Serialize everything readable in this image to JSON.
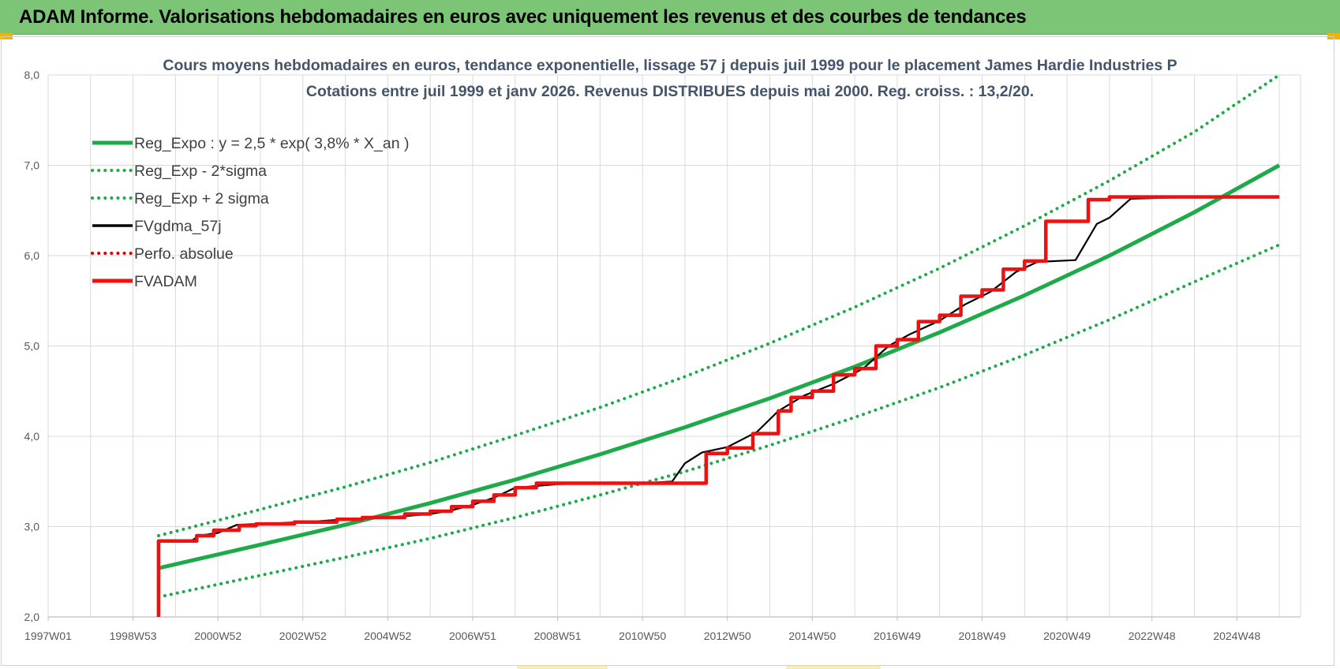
{
  "header": {
    "banner_title": "ADAM Informe. Valorisations hebdomadaires en euros avec uniquement les revenus et des courbes de tendances"
  },
  "colors": {
    "banner": "#7cc576",
    "trend": "#1faa4a",
    "fvadam": "#ee1111",
    "fvgdma": "#000000",
    "perfo": "#dd0000",
    "grid": "#d9d9d9"
  },
  "chart_data": {
    "type": "line",
    "title": "Cours moyens hebdomadaires en euros, tendance exponentielle, lissage 57 j depuis juil 1999 pour le placement James Hardie Industries P",
    "subtitle": "Cotations entre juil 1999 et janv 2026. Revenus DISTRIBUES depuis mai 2000. Reg. croiss. : 13,2/20.",
    "xlabel": "",
    "ylabel": "",
    "x_range": [
      1997.0,
      2026.5
    ],
    "ylim": [
      2.0,
      8.0
    ],
    "y_ticks": [
      "2,0",
      "3,0",
      "4,0",
      "5,0",
      "6,0",
      "7,0",
      "8,0"
    ],
    "y_tick_values": [
      2.0,
      3.0,
      4.0,
      5.0,
      6.0,
      7.0,
      8.0
    ],
    "x_ticks": [
      {
        "label": "1997W01",
        "x": 1997.0
      },
      {
        "label": "1998W53",
        "x": 1999.0
      },
      {
        "label": "2000W52",
        "x": 2001.0
      },
      {
        "label": "2002W52",
        "x": 2003.0
      },
      {
        "label": "2004W52",
        "x": 2005.0
      },
      {
        "label": "2006W51",
        "x": 2007.0
      },
      {
        "label": "2008W51",
        "x": 2009.0
      },
      {
        "label": "2010W50",
        "x": 2011.0
      },
      {
        "label": "2012W50",
        "x": 2013.0
      },
      {
        "label": "2014W50",
        "x": 2015.0
      },
      {
        "label": "2016W49",
        "x": 2017.0
      },
      {
        "label": "2018W49",
        "x": 2019.0
      },
      {
        "label": "2020W49",
        "x": 2021.0
      },
      {
        "label": "2022W48",
        "x": 2023.0
      },
      {
        "label": "2024W48",
        "x": 2025.0
      }
    ],
    "grid": true,
    "legend_position": "top-left",
    "series": [
      {
        "name": "Reg_Expo : y = 2,5 * exp( 3,8% *  X_an )",
        "style": "solid-thick",
        "color": "#1faa4a",
        "x": [
          1999.6,
          2002.0,
          2004.0,
          2006.0,
          2008.0,
          2010.0,
          2012.0,
          2014.0,
          2016.0,
          2018.0,
          2020.0,
          2022.0,
          2024.0,
          2026.0
        ],
        "y": [
          2.54,
          2.8,
          3.02,
          3.26,
          3.52,
          3.8,
          4.1,
          4.42,
          4.77,
          5.15,
          5.56,
          6.0,
          6.48,
          7.0
        ]
      },
      {
        "name": "Reg_Exp - 2*sigma",
        "style": "dotted",
        "color": "#1faa4a",
        "x": [
          1999.6,
          2002.0,
          2004.0,
          2006.0,
          2008.0,
          2010.0,
          2012.0,
          2014.0,
          2016.0,
          2018.0,
          2020.0,
          2022.0,
          2024.0,
          2026.0
        ],
        "y": [
          2.22,
          2.46,
          2.66,
          2.87,
          3.1,
          3.35,
          3.61,
          3.9,
          4.21,
          4.54,
          4.9,
          5.29,
          5.71,
          6.12
        ]
      },
      {
        "name": "Reg_Exp + 2 sigma",
        "style": "dotted",
        "color": "#1faa4a",
        "x": [
          1999.6,
          2002.0,
          2004.0,
          2006.0,
          2008.0,
          2010.0,
          2012.0,
          2014.0,
          2016.0,
          2018.0,
          2020.0,
          2022.0,
          2024.0,
          2026.0
        ],
        "y": [
          2.9,
          3.19,
          3.44,
          3.71,
          4.01,
          4.32,
          4.66,
          5.03,
          5.43,
          5.86,
          6.33,
          6.83,
          7.37,
          8.0
        ]
      },
      {
        "name": "FVgdma_57j",
        "style": "solid-thin",
        "color": "#000000",
        "x": [
          1999.6,
          1999.62,
          2000.4,
          2000.55,
          2001.0,
          2001.2,
          2001.45,
          2002.0,
          2003.0,
          2004.0,
          2005.0,
          2006.0,
          2006.5,
          2007.0,
          2007.5,
          2008.0,
          2009.0,
          2010.0,
          2011.0,
          2011.7,
          2012.0,
          2012.4,
          2013.0,
          2013.7,
          2014.2,
          2014.8,
          2015.5,
          2016.2,
          2016.8,
          2017.3,
          2018.0,
          2018.6,
          2019.2,
          2019.8,
          2020.3,
          2021.2,
          2021.7,
          2022.0,
          2022.5,
          2024.0,
          2026.0
        ],
        "y": [
          2.0,
          2.84,
          2.85,
          2.9,
          2.93,
          2.97,
          3.02,
          3.03,
          3.05,
          3.08,
          3.1,
          3.14,
          3.18,
          3.24,
          3.32,
          3.43,
          3.47,
          3.48,
          3.48,
          3.5,
          3.7,
          3.82,
          3.88,
          4.05,
          4.28,
          4.45,
          4.58,
          4.75,
          5.0,
          5.13,
          5.28,
          5.46,
          5.6,
          5.82,
          5.93,
          5.95,
          6.35,
          6.42,
          6.63,
          6.65,
          6.65
        ]
      },
      {
        "name": "Perfo. absolue",
        "style": "dotted",
        "color": "#dd0000",
        "x": [],
        "y": []
      },
      {
        "name": "FVADAM",
        "style": "step-thick",
        "color": "#ee1111",
        "x": [
          1999.6,
          1999.6,
          2000.5,
          2000.5,
          2000.9,
          2000.9,
          2001.5,
          2001.5,
          2001.9,
          2001.9,
          2002.8,
          2002.8,
          2003.8,
          2003.8,
          2004.4,
          2004.4,
          2005.4,
          2005.4,
          2006.0,
          2006.0,
          2006.5,
          2006.5,
          2007.0,
          2007.0,
          2007.5,
          2007.5,
          2008.0,
          2008.0,
          2008.5,
          2008.5,
          2012.5,
          2012.5,
          2013.0,
          2013.0,
          2013.6,
          2013.6,
          2014.2,
          2014.2,
          2014.5,
          2014.5,
          2015.0,
          2015.0,
          2015.5,
          2015.5,
          2016.0,
          2016.0,
          2016.5,
          2016.5,
          2017.0,
          2017.0,
          2017.5,
          2017.5,
          2018.0,
          2018.0,
          2018.5,
          2018.5,
          2019.0,
          2019.0,
          2019.5,
          2019.5,
          2020.0,
          2020.0,
          2020.5,
          2020.5,
          2021.5,
          2021.5,
          2022.0,
          2022.0,
          2022.5,
          2022.5,
          2026.0
        ],
        "y": [
          2.0,
          2.84,
          2.84,
          2.9,
          2.9,
          2.96,
          2.96,
          3.01,
          3.01,
          3.03,
          3.03,
          3.05,
          3.05,
          3.08,
          3.08,
          3.1,
          3.1,
          3.14,
          3.14,
          3.17,
          3.17,
          3.22,
          3.22,
          3.28,
          3.28,
          3.35,
          3.35,
          3.43,
          3.43,
          3.48,
          3.48,
          3.81,
          3.81,
          3.87,
          3.87,
          4.03,
          4.03,
          4.28,
          4.28,
          4.43,
          4.43,
          4.5,
          4.5,
          4.68,
          4.68,
          4.75,
          4.75,
          5.0,
          5.0,
          5.07,
          5.07,
          5.27,
          5.27,
          5.34,
          5.34,
          5.55,
          5.55,
          5.62,
          5.62,
          5.85,
          5.85,
          5.94,
          5.94,
          6.38,
          6.38,
          6.62,
          6.62,
          6.65,
          6.65,
          6.65,
          6.65
        ]
      }
    ]
  }
}
